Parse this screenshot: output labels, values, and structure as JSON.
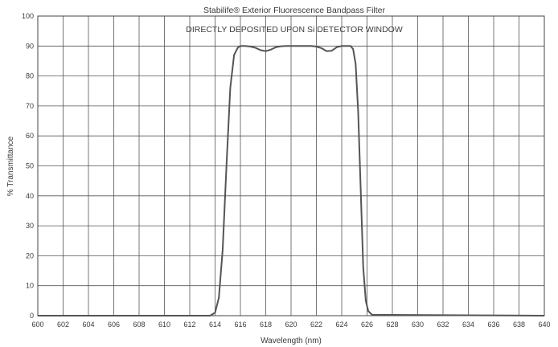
{
  "chart_data": {
    "type": "line",
    "title": "Stabilife® Exterior Fluorescence Bandpass Filter",
    "subtitle": "DIRECTLY DEPOSITED UPON Si DETECTOR WINDOW",
    "xlabel": "Wavelength (nm)",
    "ylabel": "% Transmittance",
    "xlim": [
      600,
      640
    ],
    "ylim": [
      0,
      100
    ],
    "xticks": [
      600,
      602,
      604,
      606,
      608,
      610,
      612,
      614,
      616,
      618,
      620,
      622,
      624,
      626,
      628,
      630,
      632,
      634,
      636,
      638,
      640
    ],
    "yticks": [
      0,
      10,
      20,
      30,
      40,
      50,
      60,
      70,
      80,
      90,
      100
    ],
    "grid": true,
    "line_color": "#555555",
    "series": [
      {
        "x": [
          600,
          613.6,
          614.0,
          614.3,
          614.6,
          614.9,
          615.2,
          615.5,
          615.8,
          616.0,
          616.4,
          616.8,
          617.2,
          617.6,
          618.0,
          618.4,
          618.8,
          619.2,
          619.6,
          620.0,
          620.4,
          620.8,
          621.2,
          621.6,
          622.0,
          622.4,
          622.8,
          623.2,
          623.6,
          624.0,
          624.4,
          624.7,
          624.9,
          625.1,
          625.3,
          625.5,
          625.7,
          625.9,
          626.1,
          626.4,
          640
        ],
        "y": [
          0,
          0,
          1,
          6,
          22,
          50,
          76,
          87,
          89.5,
          90,
          90,
          89.8,
          89.4,
          88.6,
          88.3,
          88.8,
          89.6,
          89.9,
          90,
          90,
          90,
          90,
          90,
          90,
          89.8,
          89.3,
          88.3,
          88.4,
          89.6,
          90,
          90,
          90,
          89,
          84,
          68,
          42,
          16,
          5,
          1.5,
          0.3,
          0
        ]
      }
    ]
  }
}
